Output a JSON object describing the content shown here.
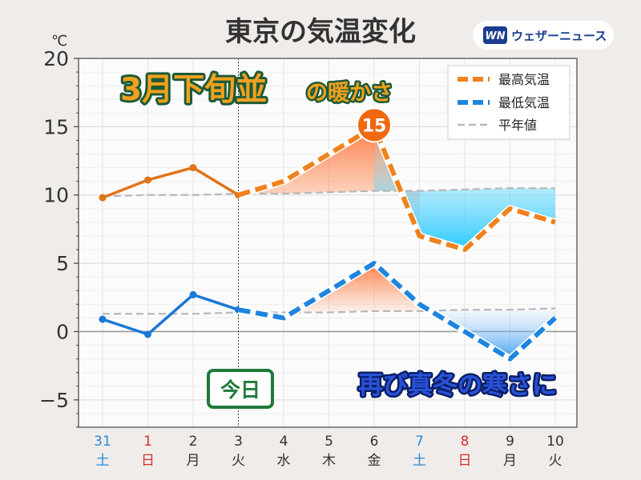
{
  "header": {
    "title": "東京の気温変化",
    "unit": "℃",
    "brand": "ウェザーニュース",
    "brand_logo": "WN"
  },
  "annotations": {
    "warm": {
      "big": "3月下旬並",
      "small": "の暖かさ"
    },
    "cold": "再び真冬の寒さに",
    "today": "今日",
    "peak": "15"
  },
  "colors": {
    "max": "#f0821e",
    "max_obs": "#e07418",
    "min": "#1e84e0",
    "min_obs": "#1a78d8",
    "normal": "#b8b8b8",
    "sat": "#2a8ad8",
    "sun": "#d83030",
    "weekday": "#333333"
  },
  "chart_data": {
    "type": "line",
    "ylim": [
      -7,
      20
    ],
    "yticks": [
      -5,
      0,
      5,
      10,
      15,
      20
    ],
    "ytick_labels": [
      "−5",
      "0",
      "5",
      "10",
      "15",
      "20"
    ],
    "grid": true,
    "legend_position": "top-right",
    "today_index": 3,
    "days": [
      {
        "date": "31",
        "dow": "土",
        "kind": "sat"
      },
      {
        "date": "1",
        "dow": "日",
        "kind": "sun"
      },
      {
        "date": "2",
        "dow": "月",
        "kind": "weekday"
      },
      {
        "date": "3",
        "dow": "火",
        "kind": "weekday"
      },
      {
        "date": "4",
        "dow": "水",
        "kind": "weekday"
      },
      {
        "date": "5",
        "dow": "木",
        "kind": "weekday"
      },
      {
        "date": "6",
        "dow": "金",
        "kind": "weekday"
      },
      {
        "date": "7",
        "dow": "土",
        "kind": "sat"
      },
      {
        "date": "8",
        "dow": "日",
        "kind": "sun"
      },
      {
        "date": "9",
        "dow": "月",
        "kind": "weekday"
      },
      {
        "date": "10",
        "dow": "火",
        "kind": "weekday"
      }
    ],
    "series": [
      {
        "name": "最高気温",
        "key": "max",
        "values": [
          9.8,
          11.1,
          12.0,
          10.0,
          11.0,
          13.0,
          15.0,
          7.0,
          6.0,
          9.0,
          8.0
        ]
      },
      {
        "name": "最低気温",
        "key": "min",
        "values": [
          0.9,
          -0.2,
          2.7,
          1.6,
          1.0,
          3.0,
          5.0,
          2.0,
          0.0,
          -2.0,
          1.0
        ]
      },
      {
        "name": "平年値",
        "key": "normal_max",
        "values": [
          9.9,
          10.0,
          10.0,
          10.1,
          10.1,
          10.2,
          10.3,
          10.3,
          10.4,
          10.5,
          10.5
        ]
      },
      {
        "name": "平年値",
        "key": "normal_min",
        "values": [
          1.3,
          1.3,
          1.3,
          1.4,
          1.4,
          1.4,
          1.5,
          1.5,
          1.6,
          1.6,
          1.7
        ]
      }
    ]
  }
}
